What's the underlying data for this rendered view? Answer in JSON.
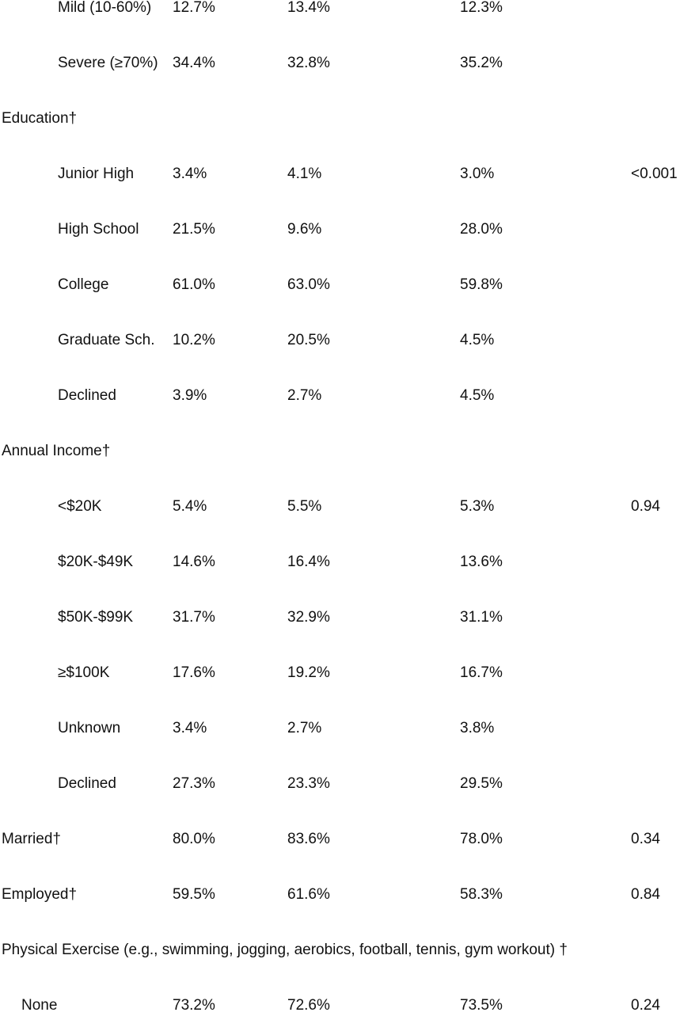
{
  "rows": [
    {
      "label": "Mild (10-60%)",
      "v1": "12.7%",
      "v2": "13.4%",
      "v3": "12.3%",
      "p": ""
    },
    {
      "label": "Severe (≥70%)",
      "v1": "34.4%",
      "v2": "32.8%",
      "v3": "35.2%",
      "p": ""
    },
    {
      "label": "Education†",
      "v1": "",
      "v2": "",
      "v3": "",
      "p": ""
    },
    {
      "label": "Junior High",
      "v1": "3.4%",
      "v2": "4.1%",
      "v3": "3.0%",
      "p": "<0.001"
    },
    {
      "label": "High School",
      "v1": "21.5%",
      "v2": "9.6%",
      "v3": "28.0%",
      "p": ""
    },
    {
      "label": "College",
      "v1": "61.0%",
      "v2": "63.0%",
      "v3": "59.8%",
      "p": ""
    },
    {
      "label": "Graduate Sch.",
      "v1": "10.2%",
      "v2": "20.5%",
      "v3": "4.5%",
      "p": ""
    },
    {
      "label": "Declined",
      "v1": "3.9%",
      "v2": "2.7%",
      "v3": "4.5%",
      "p": ""
    },
    {
      "label": "Annual Income†",
      "v1": "",
      "v2": "",
      "v3": "",
      "p": ""
    },
    {
      "label": "<$20K",
      "v1": "5.4%",
      "v2": "5.5%",
      "v3": "5.3%",
      "p": "0.94"
    },
    {
      "label": "$20K-$49K",
      "v1": "14.6%",
      "v2": "16.4%",
      "v3": "13.6%",
      "p": ""
    },
    {
      "label": "$50K-$99K",
      "v1": "31.7%",
      "v2": "32.9%",
      "v3": "31.1%",
      "p": ""
    },
    {
      "label": "≥$100K",
      "v1": "17.6%",
      "v2": "19.2%",
      "v3": "16.7%",
      "p": ""
    },
    {
      "label": "Unknown",
      "v1": "3.4%",
      "v2": "2.7%",
      "v3": "3.8%",
      "p": ""
    },
    {
      "label": "Declined",
      "v1": "27.3%",
      "v2": "23.3%",
      "v3": "29.5%",
      "p": ""
    },
    {
      "label": "Married†",
      "v1": "80.0%",
      "v2": "83.6%",
      "v3": "78.0%",
      "p": "0.34"
    },
    {
      "label": "Employed†",
      "v1": "59.5%",
      "v2": "61.6%",
      "v3": "58.3%",
      "p": "0.84"
    },
    {
      "label": "Physical Exercise (e.g., swimming, jogging, aerobics, football, tennis, gym workout) †",
      "v1": "",
      "v2": "",
      "v3": "",
      "p": ""
    },
    {
      "label": "None",
      "v1": "73.2%",
      "v2": "72.6%",
      "v3": "73.5%",
      "p": "0.24"
    }
  ]
}
